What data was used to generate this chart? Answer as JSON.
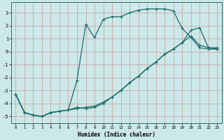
{
  "xlabel": "Humidex (Indice chaleur)",
  "bg_color": "#cce8e8",
  "grid_color": "#c8a8a8",
  "line_color": "#1a6b6b",
  "xlim": [
    -0.5,
    23.5
  ],
  "ylim": [
    -5.5,
    3.8
  ],
  "xticks": [
    0,
    1,
    2,
    3,
    4,
    5,
    6,
    7,
    8,
    9,
    10,
    11,
    12,
    13,
    14,
    15,
    16,
    17,
    18,
    19,
    20,
    21,
    22,
    23
  ],
  "yticks": [
    -5,
    -4,
    -3,
    -2,
    -1,
    0,
    1,
    2,
    3
  ],
  "line1_x": [
    0,
    1,
    2,
    3,
    4,
    5,
    6,
    7,
    8,
    9,
    10,
    11,
    12,
    13,
    14,
    15,
    16,
    17,
    18,
    19,
    20,
    21,
    22,
    23
  ],
  "line1_y": [
    -3.3,
    -4.7,
    -4.9,
    -5.0,
    -4.7,
    -4.6,
    -4.5,
    -2.2,
    2.1,
    1.1,
    2.5,
    2.7,
    2.7,
    3.0,
    3.2,
    3.3,
    3.3,
    3.3,
    3.15,
    1.8,
    1.1,
    0.3,
    0.2,
    0.2
  ],
  "line2_x": [
    0,
    1,
    2,
    3,
    4,
    5,
    6,
    7,
    8,
    9,
    10,
    11,
    12,
    13,
    14,
    15,
    16,
    17,
    18,
    19,
    20,
    21,
    22,
    23
  ],
  "line2_y": [
    -3.3,
    -4.7,
    -4.9,
    -5.0,
    -4.7,
    -4.6,
    -4.5,
    -4.4,
    -4.3,
    -4.2,
    -3.9,
    -3.5,
    -3.0,
    -2.4,
    -1.9,
    -1.3,
    -0.8,
    -0.2,
    0.2,
    0.7,
    1.2,
    0.5,
    0.3,
    0.3
  ],
  "line3_x": [
    0,
    1,
    2,
    3,
    4,
    5,
    6,
    7,
    8,
    9,
    10,
    11,
    12,
    13,
    14,
    15,
    16,
    17,
    18,
    19,
    20,
    21,
    22,
    23
  ],
  "line3_y": [
    -3.3,
    -4.7,
    -4.9,
    -5.0,
    -4.7,
    -4.6,
    -4.5,
    -4.3,
    -4.4,
    -4.3,
    -4.0,
    -3.5,
    -3.0,
    -2.4,
    -1.9,
    -1.3,
    -0.8,
    -0.2,
    0.2,
    0.7,
    1.65,
    1.85,
    0.3,
    0.2
  ]
}
